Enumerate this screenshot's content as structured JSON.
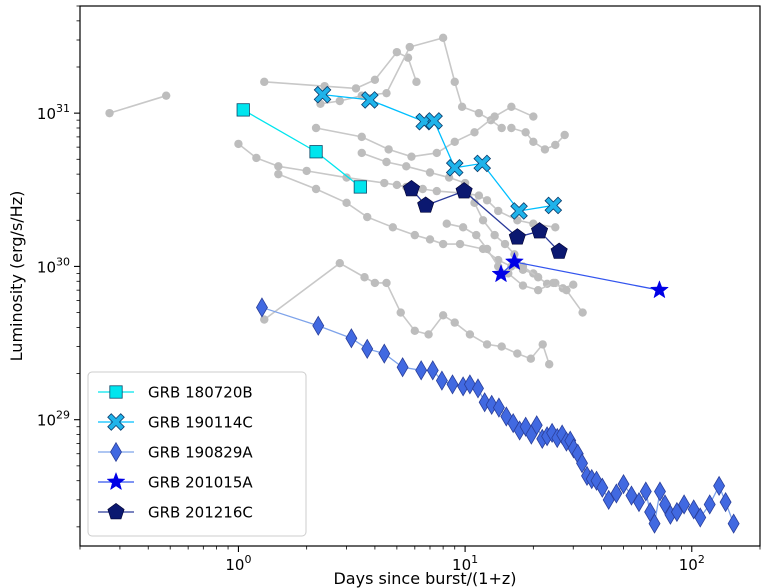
{
  "chart_data": {
    "type": "scatter",
    "xlabel": "Days since burst/(1+z)",
    "ylabel": "Luminosity (erg/s/Hz)",
    "xscale": "log",
    "yscale": "log",
    "xlim": [
      0.2,
      200
    ],
    "ylim": [
      1.5e+28,
      5e+31
    ],
    "grid": false,
    "legend_position": "lower-left",
    "x_ticks": [
      {
        "value": 1,
        "base": "10",
        "exp": "0"
      },
      {
        "value": 10,
        "base": "10",
        "exp": "1"
      },
      {
        "value": 100,
        "base": "10",
        "exp": "2"
      }
    ],
    "y_ticks": [
      {
        "value": 1e+29,
        "base": "10",
        "exp": "29"
      },
      {
        "value": 1e+30,
        "base": "10",
        "exp": "30"
      },
      {
        "value": 1e+31,
        "base": "10",
        "exp": "31"
      }
    ],
    "background_series": [
      {
        "x": [
          0.27,
          0.48
        ],
        "y": [
          1e+31,
          1.3e+31
        ]
      },
      {
        "x": [
          1.0,
          1.2,
          1.5,
          2.0,
          3.0,
          4.4,
          5.0,
          5.5,
          6.5,
          7.5,
          10.0,
          11.5,
          12.5,
          14.0,
          17.0,
          20.0,
          25.0
        ],
        "y": [
          6.3e+30,
          5.1e+30,
          4.5e+30,
          4.2e+30,
          3.8e+30,
          3.5e+30,
          3.4e+30,
          3.3e+30,
          3.2e+30,
          3.1e+30,
          3e+30,
          2.9e+30,
          2.7e+30,
          2.3e+30,
          2e+30,
          1.9e+30,
          1.8e+30
        ]
      },
      {
        "x": [
          1.3,
          2.4,
          3.3,
          4.0,
          5.0,
          5.6,
          6.1
        ],
        "y": [
          1.6e+31,
          1.5e+31,
          1.45e+31,
          1.65e+31,
          2.5e+31,
          2.3e+31,
          1.6e+31
        ]
      },
      {
        "x": [
          2.3,
          2.8,
          3.5,
          4.5,
          5.7,
          8.0,
          9.0,
          9.7,
          11.5,
          13.0,
          14.5
        ],
        "y": [
          1.15e+31,
          1.2e+31,
          1.3e+31,
          1.35e+31,
          2.7e+31,
          3.1e+31,
          1.6e+31,
          1.1e+31,
          1e+31,
          9e+30,
          8e+30
        ]
      },
      {
        "x": [
          1.5,
          2.2,
          3.0,
          3.7,
          4.8,
          6.0,
          7.0,
          8.0,
          9.5,
          12.0,
          14.0,
          16.0,
          18.0,
          20.0
        ],
        "y": [
          4e+30,
          3.2e+30,
          2.6e+30,
          2.1e+30,
          1.8e+30,
          1.6e+30,
          1.5e+30,
          1.4e+30,
          1.4e+30,
          1.3e+30,
          1.1e+30,
          1e+30,
          9.5e+29,
          9e+29
        ]
      },
      {
        "x": [
          3.5,
          4.5,
          5.5,
          7.0,
          8.5,
          10.0,
          11.0,
          12.0,
          13.5,
          15.0,
          16.5,
          18.0,
          21.0,
          23.0,
          25.0,
          27.0,
          30.0
        ],
        "y": [
          5.5e+30,
          4.8e+30,
          4.5e+30,
          4.1e+30,
          3.8e+30,
          3.5e+30,
          2.6e+30,
          2e+30,
          1.6e+30,
          1.4e+30,
          1.2e+30,
          1e+30,
          8.5e+29,
          7.7e+29,
          7.8e+29,
          7.2e+29,
          7.6e+29
        ]
      },
      {
        "x": [
          8.3,
          9.8,
          11.2,
          12.5,
          14.0,
          15.5,
          18.0,
          21.0,
          24.5,
          28.0,
          33.0
        ],
        "y": [
          1.9e+30,
          1.8e+30,
          1.6e+30,
          1.3e+30,
          1e+30,
          9e+29,
          7.5e+29,
          7e+29,
          7.8e+29,
          7e+29,
          5e+29
        ]
      },
      {
        "x": [
          2.2,
          3.5,
          4.6,
          5.8,
          7.5,
          9.0,
          11.0,
          13.5,
          16.0,
          20.0
        ],
        "y": [
          8e+30,
          7e+30,
          5.8e+30,
          5.2e+30,
          5.5e+30,
          6.5e+30,
          7.5e+30,
          9.5e+30,
          1.1e+31,
          9.5e+30
        ]
      },
      {
        "x": [
          16.0,
          18.5,
          20.0,
          22.5,
          25.0,
          27.5
        ],
        "y": [
          8e+30,
          7.5e+30,
          6.5e+30,
          5.8e+30,
          6.2e+30,
          7.2e+30
        ]
      },
      {
        "x": [
          1.3,
          2.8,
          3.6,
          4.0,
          4.5,
          5.2,
          6.0,
          6.9,
          8.0,
          9.0,
          10.5,
          12.5,
          14.5,
          17.0,
          19.5,
          22.0,
          23.5
        ],
        "y": [
          4.5e+29,
          1.05e+30,
          8.5e+29,
          7.8e+29,
          7.8e+29,
          5e+29,
          3.8e+29,
          3.6e+29,
          4.8e+29,
          4.3e+29,
          3.6e+29,
          3.1e+29,
          3e+29,
          2.7e+29,
          2.5e+29,
          3.1e+29,
          2.3e+29
        ]
      }
    ],
    "series": [
      {
        "name": "GRB 180720B",
        "marker": "square",
        "color": "#00e5ee",
        "line_color": "#00e5ee",
        "x": [
          1.05,
          2.2,
          3.45
        ],
        "y": [
          1.05e+31,
          5.6e+30,
          3.3e+30
        ]
      },
      {
        "name": "GRB 190114C",
        "marker": "x",
        "color": "#1fb3ea",
        "line_color": "#00bfff",
        "x": [
          2.35,
          3.8,
          6.6,
          7.3,
          9.0,
          11.9,
          17.3,
          24.5
        ],
        "y": [
          1.32e+31,
          1.22e+31,
          8.8e+30,
          8.9e+30,
          4.4e+30,
          4.7e+30,
          2.3e+30,
          2.5e+30
        ]
      },
      {
        "name": "GRB 190829A",
        "marker": "diamond",
        "color": "#4169e1",
        "line_color": "#7ea3ea",
        "x": [
          1.27,
          2.25,
          3.15,
          3.7,
          4.4,
          5.3,
          6.4,
          7.2,
          7.9,
          8.8,
          9.8,
          10.5,
          11.4,
          12.2,
          13.1,
          14.1,
          15.2,
          16.3,
          17.4,
          18.5,
          19.6,
          20.7,
          21.9,
          23.0,
          24.2,
          25.5,
          26.8,
          28.0,
          29.1,
          30.1,
          31.4,
          32.8,
          34.5,
          36.2,
          38.0,
          40.3,
          43.0,
          46.5,
          50.0,
          54.2,
          58.5,
          62.7,
          65.5,
          68.5,
          72.4,
          76.2,
          80.5,
          86.0,
          92.5,
          102.0,
          109.0,
          120.0,
          132.0,
          141.0,
          153.0
        ],
        "y": [
          5.4e+29,
          4.1e+29,
          3.4e+29,
          2.9e+29,
          2.7e+29,
          2.2e+29,
          2.1e+29,
          2.1e+29,
          1.8e+29,
          1.7e+29,
          1.65e+29,
          1.7e+29,
          1.6e+29,
          1.3e+29,
          1.25e+29,
          1.2e+29,
          1.05e+29,
          9.5e+28,
          8.5e+28,
          9e+28,
          8e+28,
          9.2e+28,
          7.5e+28,
          7.8e+28,
          8.2e+28,
          7.6e+28,
          8e+28,
          7.2e+28,
          7.3e+28,
          6.5e+28,
          6e+28,
          5.2e+28,
          4.3e+28,
          4.1e+28,
          4e+28,
          3.6e+28,
          3e+28,
          3.3e+28,
          3.8e+28,
          3.2e+28,
          2.9e+28,
          3.4e+28,
          2.5e+28,
          2.1e+28,
          3.4e+28,
          2.8e+28,
          2.4e+28,
          2.5e+28,
          2.8e+28,
          2.6e+28,
          2.3e+28,
          2.8e+28,
          3.7e+28,
          2.9e+28,
          2.1e+28
        ]
      },
      {
        "name": "GRB 201015A",
        "marker": "star",
        "color": "#0000e6",
        "line_color": "#3355ee",
        "x": [
          14.4,
          16.5,
          72.0
        ],
        "y": [
          8.9e+29,
          1.07e+30,
          7e+29
        ]
      },
      {
        "name": "GRB 201216C",
        "marker": "pentagon",
        "color": "#0b1870",
        "line_color": "#2a3a9a",
        "x": [
          5.8,
          6.7,
          9.9,
          17.0,
          21.3,
          26.0
        ],
        "y": [
          3.2e+30,
          2.5e+30,
          3.1e+30,
          1.55e+30,
          1.7e+30,
          1.25e+30
        ]
      }
    ]
  }
}
